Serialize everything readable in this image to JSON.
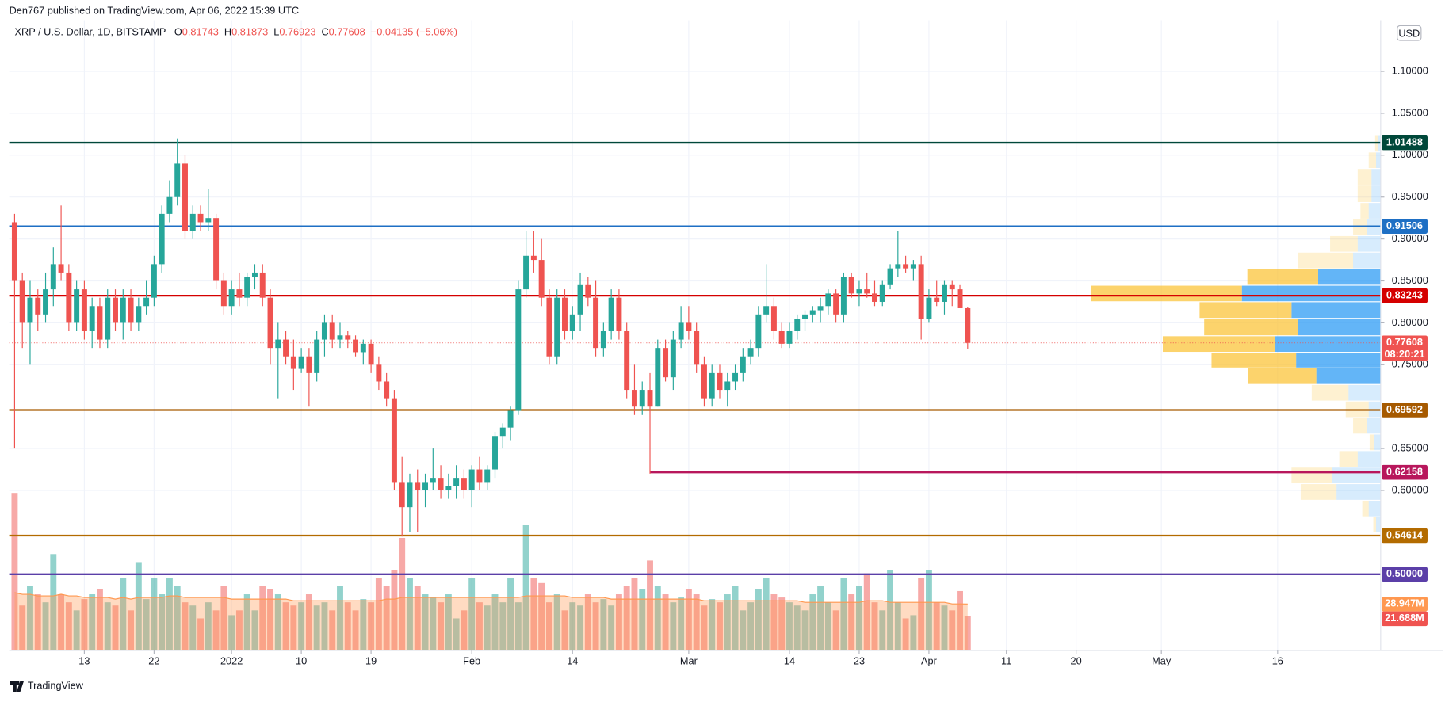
{
  "header": {
    "publisher": "Den767 published on TradingView.com, Apr 06, 2022 15:39 UTC",
    "brand": "TradingView"
  },
  "chart_data": {
    "type": "candlestick",
    "symbol": "XRP / U.S. Dollar, 1D, BITSTAMP",
    "ohlc_letters": {
      "open": "O",
      "high": "H",
      "low": "L",
      "close": "C"
    },
    "change": "−0.04135 (−5.06%)",
    "currency": "USD",
    "countdown": "08:20:21",
    "colors": {
      "up": "#26a69a",
      "down": "#ef5350",
      "volume_ma": "#ff9850",
      "profile_up": "#2196f3",
      "profile_down": "#fbc02d"
    },
    "xlim": [
      -0.7,
      176.3
    ],
    "ylim": [
      0.409,
      1.161
    ],
    "volume_lim": [
      0,
      392
    ],
    "grid": true,
    "xticks": [
      {
        "value": 9,
        "label": "13"
      },
      {
        "value": 18,
        "label": "22"
      },
      {
        "value": 28,
        "label": "2022"
      },
      {
        "value": 37,
        "label": "10"
      },
      {
        "value": 46,
        "label": "19"
      },
      {
        "value": 59,
        "label": "Feb"
      },
      {
        "value": 72,
        "label": "14"
      },
      {
        "value": 87,
        "label": "Mar"
      },
      {
        "value": 100,
        "label": "14"
      },
      {
        "value": 109,
        "label": "23"
      },
      {
        "value": 118,
        "label": "Apr"
      },
      {
        "value": 128,
        "label": "11"
      },
      {
        "value": 137,
        "label": "20"
      },
      {
        "value": 148,
        "label": "May"
      },
      {
        "value": 163,
        "label": "16"
      }
    ],
    "yticks": [
      {
        "value": 0.6,
        "label": "0.60000"
      },
      {
        "value": 0.65,
        "label": "0.65000"
      },
      {
        "value": 0.75,
        "label": "0.75000"
      },
      {
        "value": 0.8,
        "label": "0.80000"
      },
      {
        "value": 0.85,
        "label": "0.85000"
      },
      {
        "value": 0.9,
        "label": "0.90000"
      },
      {
        "value": 0.95,
        "label": "0.95000"
      },
      {
        "value": 1.0,
        "label": "1.00000"
      },
      {
        "value": 1.05,
        "label": "1.05000"
      },
      {
        "value": 1.1,
        "label": "1.10000"
      }
    ],
    "open": [
      0.92,
      0.85,
      0.8,
      0.83,
      0.81,
      0.84,
      0.87,
      0.86,
      0.8,
      0.84,
      0.79,
      0.82,
      0.78,
      0.83,
      0.8,
      0.83,
      0.8,
      0.82,
      0.83,
      0.87,
      0.93,
      0.95,
      0.99,
      0.91,
      0.93,
      0.92,
      0.925,
      0.85,
      0.82,
      0.84,
      0.83,
      0.855,
      0.86,
      0.83,
      0.77,
      0.78,
      0.76,
      0.745,
      0.76,
      0.74,
      0.78,
      0.8,
      0.78,
      0.785,
      0.78,
      0.765,
      0.775,
      0.75,
      0.73,
      0.71,
      0.61,
      0.58,
      0.61,
      0.6,
      0.61,
      0.615,
      0.6,
      0.605,
      0.615,
      0.6,
      0.625,
      0.61,
      0.625,
      0.665,
      0.675,
      0.695,
      0.84,
      0.88,
      0.875,
      0.83,
      0.76,
      0.83,
      0.79,
      0.81,
      0.845,
      0.83,
      0.77,
      0.79,
      0.83,
      0.79,
      0.72,
      0.7,
      0.72,
      0.7,
      0.77,
      0.735,
      0.78,
      0.8,
      0.79,
      0.75,
      0.71,
      0.74,
      0.72,
      0.73,
      0.74,
      0.76,
      0.77,
      0.81,
      0.82,
      0.79,
      0.775,
      0.79,
      0.805,
      0.81,
      0.815,
      0.82,
      0.835,
      0.81,
      0.855,
      0.835,
      0.84,
      0.835,
      0.825,
      0.845,
      0.865,
      0.87,
      0.865,
      0.87,
      0.805,
      0.83,
      0.825,
      0.845,
      0.84,
      0.81743
    ],
    "high": [
      0.93,
      0.86,
      0.85,
      0.84,
      0.86,
      0.89,
      0.94,
      0.87,
      0.85,
      0.85,
      0.83,
      0.83,
      0.84,
      0.84,
      0.84,
      0.84,
      0.83,
      0.85,
      0.88,
      0.94,
      0.97,
      1.02,
      1.0,
      0.94,
      0.94,
      0.96,
      0.93,
      0.86,
      0.85,
      0.86,
      0.86,
      0.87,
      0.87,
      0.84,
      0.8,
      0.79,
      0.78,
      0.77,
      0.77,
      0.79,
      0.81,
      0.81,
      0.8,
      0.79,
      0.785,
      0.78,
      0.78,
      0.76,
      0.74,
      0.72,
      0.64,
      0.62,
      0.625,
      0.62,
      0.65,
      0.63,
      0.62,
      0.63,
      0.625,
      0.63,
      0.64,
      0.63,
      0.67,
      0.68,
      0.7,
      0.85,
      0.91,
      0.91,
      0.9,
      0.84,
      0.84,
      0.84,
      0.82,
      0.86,
      0.855,
      0.85,
      0.8,
      0.84,
      0.84,
      0.8,
      0.75,
      0.73,
      0.74,
      0.78,
      0.78,
      0.79,
      0.82,
      0.82,
      0.8,
      0.76,
      0.75,
      0.75,
      0.74,
      0.75,
      0.77,
      0.78,
      0.82,
      0.87,
      0.83,
      0.8,
      0.8,
      0.81,
      0.815,
      0.82,
      0.83,
      0.84,
      0.84,
      0.86,
      0.86,
      0.85,
      0.86,
      0.85,
      0.85,
      0.87,
      0.91,
      0.88,
      0.875,
      0.88,
      0.84,
      0.85,
      0.85,
      0.85,
      0.845,
      0.81873
    ],
    "low": [
      0.65,
      0.77,
      0.75,
      0.79,
      0.8,
      0.82,
      0.85,
      0.79,
      0.79,
      0.78,
      0.77,
      0.77,
      0.77,
      0.79,
      0.78,
      0.79,
      0.79,
      0.81,
      0.82,
      0.86,
      0.92,
      0.94,
      0.9,
      0.9,
      0.91,
      0.91,
      0.84,
      0.81,
      0.81,
      0.82,
      0.82,
      0.84,
      0.82,
      0.75,
      0.71,
      0.75,
      0.72,
      0.74,
      0.7,
      0.73,
      0.76,
      0.77,
      0.77,
      0.77,
      0.76,
      0.75,
      0.74,
      0.72,
      0.7,
      0.6,
      0.545,
      0.55,
      0.55,
      0.58,
      0.6,
      0.59,
      0.59,
      0.59,
      0.59,
      0.58,
      0.6,
      0.6,
      0.615,
      0.65,
      0.66,
      0.69,
      0.83,
      0.86,
      0.82,
      0.75,
      0.75,
      0.78,
      0.78,
      0.79,
      0.82,
      0.76,
      0.76,
      0.78,
      0.78,
      0.71,
      0.69,
      0.69,
      0.62,
      0.7,
      0.73,
      0.72,
      0.77,
      0.78,
      0.74,
      0.7,
      0.7,
      0.71,
      0.7,
      0.72,
      0.73,
      0.75,
      0.76,
      0.8,
      0.78,
      0.77,
      0.77,
      0.78,
      0.79,
      0.8,
      0.8,
      0.81,
      0.8,
      0.8,
      0.83,
      0.82,
      0.83,
      0.82,
      0.82,
      0.84,
      0.855,
      0.86,
      0.85,
      0.78,
      0.8,
      0.82,
      0.81,
      0.82,
      0.82,
      0.76923
    ],
    "close": [
      0.85,
      0.8,
      0.83,
      0.81,
      0.84,
      0.87,
      0.86,
      0.8,
      0.84,
      0.79,
      0.82,
      0.78,
      0.83,
      0.8,
      0.83,
      0.8,
      0.82,
      0.83,
      0.87,
      0.93,
      0.95,
      0.99,
      0.91,
      0.93,
      0.92,
      0.925,
      0.85,
      0.82,
      0.84,
      0.83,
      0.855,
      0.86,
      0.83,
      0.77,
      0.78,
      0.76,
      0.745,
      0.76,
      0.74,
      0.78,
      0.8,
      0.78,
      0.785,
      0.78,
      0.765,
      0.775,
      0.75,
      0.73,
      0.71,
      0.61,
      0.58,
      0.61,
      0.6,
      0.61,
      0.615,
      0.6,
      0.605,
      0.615,
      0.6,
      0.625,
      0.61,
      0.625,
      0.665,
      0.675,
      0.695,
      0.84,
      0.88,
      0.875,
      0.83,
      0.76,
      0.83,
      0.79,
      0.81,
      0.845,
      0.83,
      0.77,
      0.79,
      0.83,
      0.79,
      0.72,
      0.7,
      0.72,
      0.7,
      0.77,
      0.735,
      0.78,
      0.8,
      0.79,
      0.75,
      0.71,
      0.74,
      0.72,
      0.73,
      0.74,
      0.76,
      0.77,
      0.81,
      0.82,
      0.79,
      0.775,
      0.79,
      0.805,
      0.81,
      0.815,
      0.82,
      0.835,
      0.81,
      0.855,
      0.835,
      0.84,
      0.835,
      0.825,
      0.845,
      0.865,
      0.87,
      0.865,
      0.87,
      0.805,
      0.83,
      0.825,
      0.845,
      0.84,
      0.81743,
      0.77608
    ],
    "volume": [
      98,
      28,
      40,
      35,
      30,
      60,
      35,
      30,
      25,
      32,
      35,
      38,
      30,
      28,
      45,
      25,
      55,
      32,
      45,
      35,
      45,
      40,
      30,
      28,
      20,
      30,
      25,
      40,
      22,
      25,
      35,
      25,
      40,
      38,
      35,
      30,
      28,
      30,
      35,
      28,
      30,
      25,
      40,
      30,
      25,
      32,
      30,
      45,
      40,
      50,
      70,
      45,
      40,
      35,
      33,
      30,
      35,
      20,
      25,
      45,
      30,
      28,
      35,
      30,
      45,
      30,
      78,
      45,
      42,
      30,
      35,
      25,
      30,
      28,
      35,
      30,
      32,
      28,
      35,
      40,
      45,
      38,
      56,
      40,
      35,
      30,
      33,
      38,
      35,
      28,
      32,
      30,
      35,
      40,
      25,
      30,
      38,
      45,
      35,
      33,
      30,
      28,
      25,
      35,
      40,
      30,
      25,
      45,
      35,
      40,
      48,
      30,
      25,
      50,
      30,
      20,
      22,
      45,
      50,
      30,
      28,
      25,
      37,
      21.688
    ],
    "volume_ma": [
      36,
      35,
      35,
      34,
      34,
      34,
      35,
      34,
      34,
      33,
      33,
      33,
      33,
      32,
      33,
      32,
      33,
      33,
      33,
      33,
      34,
      34,
      33,
      33,
      33,
      33,
      33,
      33,
      32,
      32,
      32,
      32,
      32,
      32,
      32,
      32,
      31,
      31,
      31,
      31,
      31,
      31,
      31,
      31,
      31,
      31,
      31,
      31,
      32,
      32,
      33,
      33,
      33,
      33,
      33,
      33,
      33,
      33,
      33,
      33,
      33,
      33,
      33,
      33,
      33,
      33,
      34,
      34,
      34,
      34,
      34,
      34,
      33,
      33,
      33,
      33,
      33,
      32,
      32,
      32,
      32,
      32,
      32,
      32,
      32,
      32,
      32,
      32,
      32,
      31,
      31,
      31,
      31,
      31,
      31,
      31,
      31,
      31,
      31,
      31,
      31,
      31,
      30,
      30,
      30,
      30,
      30,
      30,
      30,
      30,
      31,
      31,
      31,
      30,
      30,
      30,
      30,
      30,
      30,
      30,
      30,
      29,
      29,
      28.947
    ],
    "last_labels": {
      "volume": "21.688M",
      "volume_ma": "28.947M"
    },
    "levels": [
      {
        "price": 1.01488,
        "color": "#00483a"
      },
      {
        "price": 0.91506,
        "color": "#1e6fc4"
      },
      {
        "price": 0.83243,
        "color": "#d50000"
      },
      {
        "price": 0.69592,
        "color": "#a65a00"
      },
      {
        "price": 0.62158,
        "color": "#b8175c",
        "from": 82
      },
      {
        "price": 0.54614,
        "color": "#b36b00"
      },
      {
        "price": 0.5,
        "label": "0.50000",
        "color": "#5b3fa8"
      }
    ],
    "volume_profile": {
      "bins": [
        0.5493,
        0.568,
        0.5877,
        0.6075,
        0.6272,
        0.6469,
        0.6667,
        0.6864,
        0.7061,
        0.7259,
        0.7456,
        0.7643,
        0.784,
        0.8048,
        0.8246,
        0.8443,
        0.864,
        0.8838,
        0.9035,
        0.9232,
        0.943,
        0.9638,
        0.9836,
        1.0033,
        1.023
      ],
      "up": [
        5,
        13,
        48,
        53,
        25,
        7,
        15,
        13,
        35,
        70,
        92,
        115,
        90,
        97,
        151,
        68,
        30,
        25,
        15,
        13,
        10,
        10,
        5,
        3
      ],
      "down": [
        3,
        7,
        39,
        44,
        20,
        5,
        15,
        25,
        40,
        74,
        92,
        122,
        102,
        100,
        164,
        77,
        60,
        30,
        15,
        9,
        15,
        15,
        8,
        3
      ],
      "value_area": [
        0.7259,
        0.864
      ]
    }
  }
}
